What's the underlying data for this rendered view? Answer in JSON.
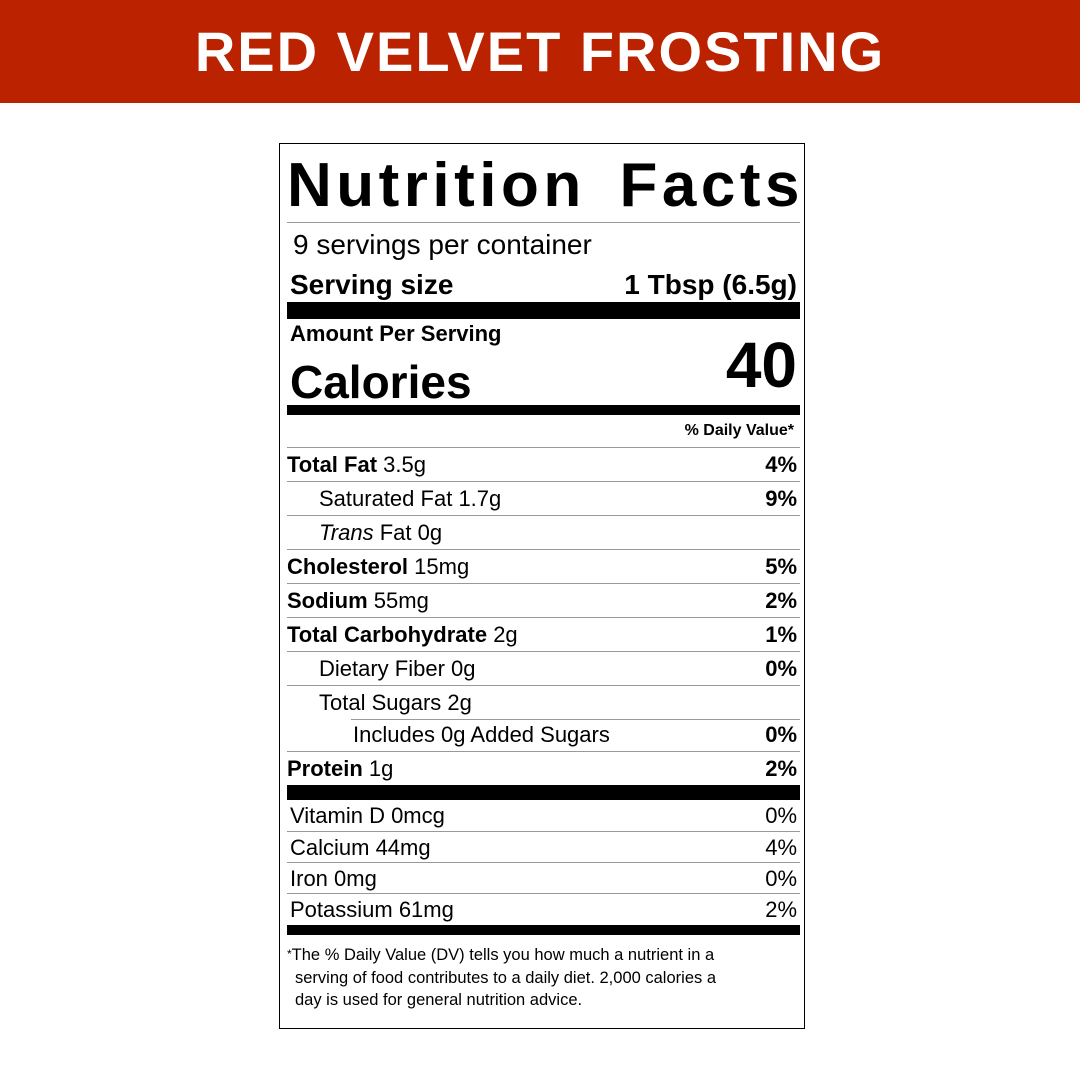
{
  "banner": {
    "title": "RED VELVET FROSTING",
    "color": "#BB2200"
  },
  "label": {
    "title": "Nutrition Facts",
    "servings_per_container": "9 servings per container",
    "serving_size_label": "Serving size",
    "serving_size_value": "1 Tbsp (6.5g)",
    "amount_per_serving": "Amount Per Serving",
    "calories_label": "Calories",
    "calories_value": "40",
    "daily_value_header": "% Daily Value*",
    "nutrients": [
      {
        "name": "Total Fat",
        "amount": "3.5g",
        "dv": "4%"
      },
      {
        "name": "Saturated Fat",
        "amount": "1.7g",
        "dv": "9%"
      },
      {
        "name": "Trans",
        "name_suffix": "Fat",
        "amount": "0g",
        "dv": ""
      },
      {
        "name": "Cholesterol",
        "amount": "15mg",
        "dv": "5%"
      },
      {
        "name": "Sodium",
        "amount": "55mg",
        "dv": "2%"
      },
      {
        "name": "Total Carbohydrate",
        "amount": "2g",
        "dv": "1%"
      },
      {
        "name": "Dietary Fiber",
        "amount": "0g",
        "dv": "0%"
      },
      {
        "name": "Total Sugars",
        "amount": "2g",
        "dv": ""
      },
      {
        "name": "Includes 0g Added Sugars",
        "amount": "",
        "dv": "0%"
      },
      {
        "name": "Protein",
        "amount": "1g",
        "dv": "2%"
      }
    ],
    "vitamins": [
      {
        "name": "Vitamin D 0mcg",
        "dv": "0%"
      },
      {
        "name": "Calcium 44mg",
        "dv": "4%"
      },
      {
        "name": "Iron 0mg",
        "dv": "0%"
      },
      {
        "name": "Potassium 61mg",
        "dv": "2%"
      }
    ],
    "footnote_star": "*",
    "footnote_lines": [
      "The % Daily Value (DV) tells you how much a nutrient in a",
      "serving of food contributes to a daily diet. 2,000 calories a",
      "day is used for general nutrition advice."
    ]
  }
}
